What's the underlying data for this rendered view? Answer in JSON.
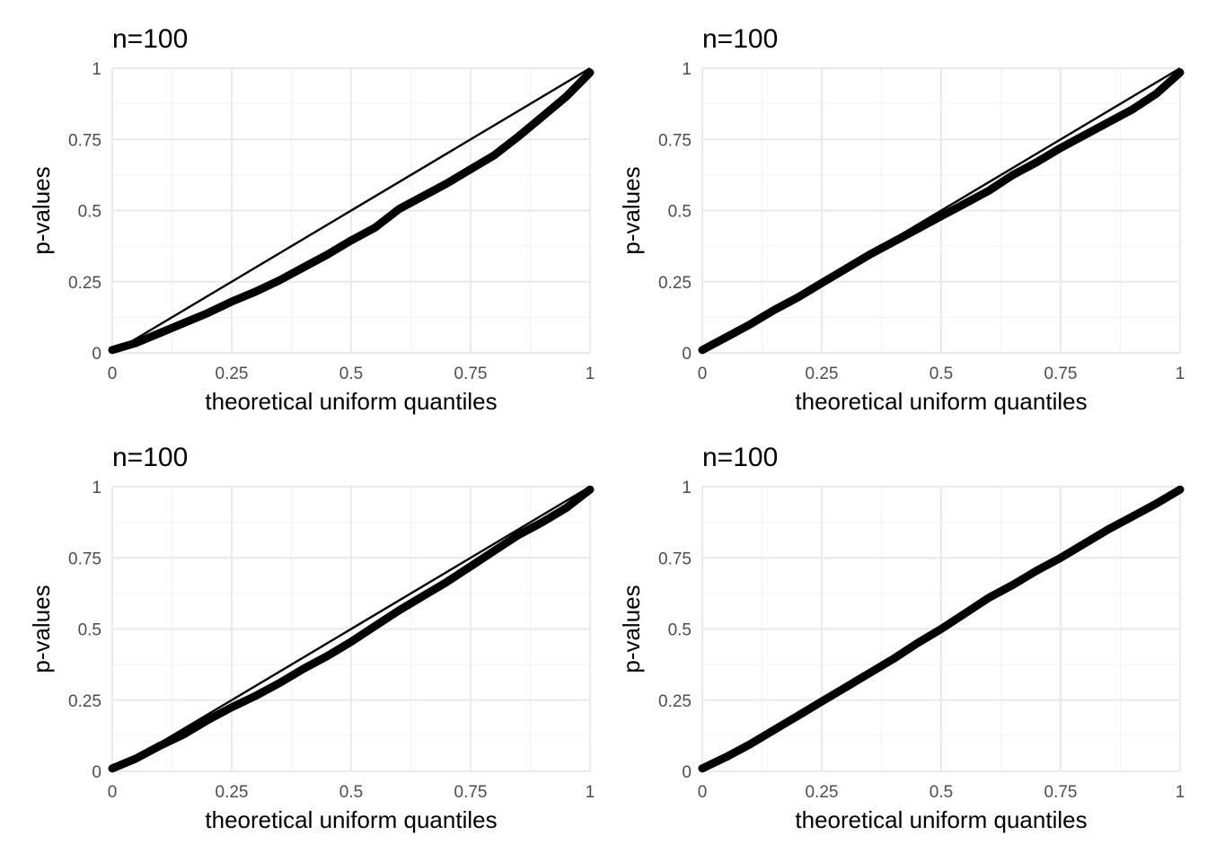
{
  "chart_data": [
    {
      "type": "line",
      "title": "n=100",
      "xlabel": "theoretical uniform quantiles",
      "ylabel": "p-values",
      "xlim": [
        0,
        1
      ],
      "ylim": [
        0,
        1
      ],
      "x_ticks": [
        "0",
        "0.25",
        "0.5",
        "0.75",
        "1"
      ],
      "y_ticks": [
        "0",
        "0.25",
        "0.5",
        "0.75",
        "1"
      ],
      "grid": true,
      "reference_line": {
        "x": [
          0,
          1
        ],
        "y": [
          0,
          1
        ]
      },
      "series": [
        {
          "x": [
            0,
            0.05,
            0.1,
            0.15,
            0.2,
            0.25,
            0.3,
            0.35,
            0.4,
            0.45,
            0.5,
            0.55,
            0.6,
            0.65,
            0.7,
            0.75,
            0.8,
            0.85,
            0.9,
            0.95,
            1
          ],
          "y": [
            0.01,
            0.035,
            0.07,
            0.105,
            0.14,
            0.18,
            0.215,
            0.255,
            0.3,
            0.345,
            0.395,
            0.44,
            0.505,
            0.55,
            0.595,
            0.645,
            0.695,
            0.76,
            0.83,
            0.9,
            0.985
          ]
        }
      ]
    },
    {
      "type": "line",
      "title": "n=100",
      "xlabel": "theoretical uniform quantiles",
      "ylabel": "p-values",
      "xlim": [
        0,
        1
      ],
      "ylim": [
        0,
        1
      ],
      "x_ticks": [
        "0",
        "0.25",
        "0.5",
        "0.75",
        "1"
      ],
      "y_ticks": [
        "0",
        "0.25",
        "0.5",
        "0.75",
        "1"
      ],
      "grid": true,
      "reference_line": {
        "x": [
          0,
          1
        ],
        "y": [
          0,
          1
        ]
      },
      "series": [
        {
          "x": [
            0,
            0.05,
            0.1,
            0.15,
            0.2,
            0.25,
            0.3,
            0.35,
            0.4,
            0.45,
            0.5,
            0.55,
            0.6,
            0.65,
            0.7,
            0.75,
            0.8,
            0.85,
            0.9,
            0.95,
            1
          ],
          "y": [
            0.01,
            0.055,
            0.1,
            0.15,
            0.195,
            0.245,
            0.295,
            0.345,
            0.39,
            0.435,
            0.48,
            0.525,
            0.57,
            0.625,
            0.67,
            0.72,
            0.765,
            0.81,
            0.855,
            0.91,
            0.985
          ]
        }
      ]
    },
    {
      "type": "line",
      "title": "n=100",
      "xlabel": "theoretical uniform quantiles",
      "ylabel": "p-values",
      "xlim": [
        0,
        1
      ],
      "ylim": [
        0,
        1
      ],
      "x_ticks": [
        "0",
        "0.25",
        "0.5",
        "0.75",
        "1"
      ],
      "y_ticks": [
        "0",
        "0.25",
        "0.5",
        "0.75",
        "1"
      ],
      "grid": true,
      "reference_line": {
        "x": [
          0,
          1
        ],
        "y": [
          0,
          1
        ]
      },
      "series": [
        {
          "x": [
            0,
            0.05,
            0.1,
            0.15,
            0.2,
            0.25,
            0.3,
            0.35,
            0.4,
            0.45,
            0.5,
            0.55,
            0.6,
            0.65,
            0.7,
            0.75,
            0.8,
            0.85,
            0.9,
            0.95,
            1
          ],
          "y": [
            0.01,
            0.045,
            0.09,
            0.13,
            0.18,
            0.225,
            0.265,
            0.31,
            0.36,
            0.405,
            0.455,
            0.51,
            0.565,
            0.615,
            0.665,
            0.72,
            0.775,
            0.83,
            0.875,
            0.925,
            0.99
          ]
        }
      ]
    },
    {
      "type": "line",
      "title": "n=100",
      "xlabel": "theoretical uniform quantiles",
      "ylabel": "p-values",
      "xlim": [
        0,
        1
      ],
      "ylim": [
        0,
        1
      ],
      "x_ticks": [
        "0",
        "0.25",
        "0.5",
        "0.75",
        "1"
      ],
      "y_ticks": [
        "0",
        "0.25",
        "0.5",
        "0.75",
        "1"
      ],
      "grid": true,
      "reference_line": {
        "x": [
          0,
          1
        ],
        "y": [
          0,
          1
        ]
      },
      "series": [
        {
          "x": [
            0,
            0.05,
            0.1,
            0.15,
            0.2,
            0.25,
            0.3,
            0.35,
            0.4,
            0.45,
            0.5,
            0.55,
            0.6,
            0.65,
            0.7,
            0.75,
            0.8,
            0.85,
            0.9,
            0.95,
            1
          ],
          "y": [
            0.01,
            0.05,
            0.095,
            0.145,
            0.195,
            0.245,
            0.295,
            0.345,
            0.395,
            0.45,
            0.5,
            0.555,
            0.61,
            0.655,
            0.705,
            0.75,
            0.8,
            0.85,
            0.895,
            0.94,
            0.99
          ]
        }
      ]
    }
  ]
}
